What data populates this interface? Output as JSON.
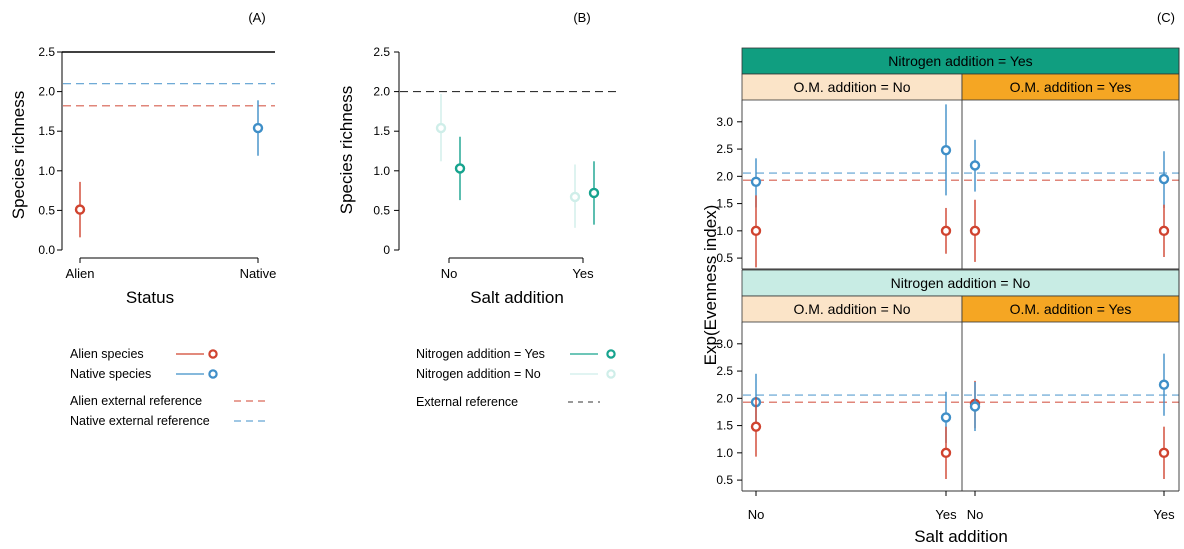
{
  "colors": {
    "alien": "#d0432f",
    "native": "#3f8fc8",
    "n_yes": "#16a38e",
    "n_no": "#cfeee9",
    "strip_n_yes": "#109e80",
    "strip_n_no": "#c8ece4",
    "strip_om_no": "#fbe4c8",
    "strip_om_yes": "#f5a623"
  },
  "chart_data": [
    {
      "panel": "(A)",
      "type": "scatter",
      "xlabel": "Status",
      "ylabel": "Species richness",
      "categories": [
        "Alien",
        "Native"
      ],
      "yticks": [
        "0.0",
        "0.5",
        "1.0",
        "1.5",
        "2.0",
        "2.5"
      ],
      "ylim": [
        0,
        2.5
      ],
      "points": [
        {
          "category": "Alien",
          "group": "alien",
          "y": 0.51,
          "lo": 0.16,
          "hi": 0.86
        },
        {
          "category": "Native",
          "group": "native",
          "y": 1.54,
          "lo": 1.19,
          "hi": 1.89
        }
      ],
      "reference_lines": [
        {
          "group": "native",
          "y": 2.1
        },
        {
          "group": "alien",
          "y": 1.82
        }
      ],
      "legend": [
        {
          "label": "Alien species",
          "group": "alien",
          "kind": "point"
        },
        {
          "label": "Native species",
          "group": "native",
          "kind": "point"
        },
        {
          "label": "Alien external reference",
          "group": "alien",
          "kind": "dash"
        },
        {
          "label": "Native external reference",
          "group": "native",
          "kind": "dash"
        }
      ]
    },
    {
      "panel": "(B)",
      "type": "scatter",
      "xlabel": "Salt addition",
      "ylabel": "Species richness",
      "categories": [
        "No",
        "Yes"
      ],
      "yticks": [
        "0",
        "0.5",
        "1.0",
        "1.5",
        "2.0",
        "2.5"
      ],
      "ylim": [
        0,
        2.5
      ],
      "points": [
        {
          "category": "No",
          "group": "n_no",
          "y": 1.54,
          "lo": 1.12,
          "hi": 1.97
        },
        {
          "category": "No",
          "group": "n_yes",
          "y": 1.03,
          "lo": 0.63,
          "hi": 1.43
        },
        {
          "category": "Yes",
          "group": "n_no",
          "y": 0.67,
          "lo": 0.28,
          "hi": 1.08
        },
        {
          "category": "Yes",
          "group": "n_yes",
          "y": 0.72,
          "lo": 0.32,
          "hi": 1.12
        }
      ],
      "reference_lines": [
        {
          "group": "external",
          "y": 2.0
        }
      ],
      "legend": [
        {
          "label": "Nitrogen addition = Yes",
          "group": "n_yes",
          "kind": "point"
        },
        {
          "label": "Nitrogen addition = No",
          "group": "n_no",
          "kind": "point"
        },
        {
          "label": "External reference",
          "group": "external",
          "kind": "dash"
        }
      ]
    },
    {
      "panel": "(C)",
      "type": "scatter",
      "xlabel": "Salt addition",
      "ylabel": "Exp(Evenness index)",
      "categories": [
        "No",
        "Yes"
      ],
      "yticks": [
        "0.5",
        "1.0",
        "1.5",
        "2.0",
        "2.5",
        "3.0"
      ],
      "ylim": [
        0.3,
        3.4
      ],
      "row_strips": [
        "Nitrogen addition = Yes",
        "Nitrogen addition = No"
      ],
      "col_strips": [
        "O.M. addition = No",
        "O.M. addition = Yes"
      ],
      "reference_lines": [
        {
          "group": "native",
          "y": 2.06
        },
        {
          "group": "alien",
          "y": 1.93
        }
      ],
      "facets": [
        {
          "nitrogen": "Yes",
          "om": "No",
          "points": [
            {
              "category": "No",
              "group": "native",
              "y": 1.9,
              "lo": 1.43,
              "hi": 2.33
            },
            {
              "category": "No",
              "group": "alien",
              "y": 1.0,
              "lo": 0.33,
              "hi": 1.65
            },
            {
              "category": "Yes",
              "group": "native",
              "y": 2.48,
              "lo": 1.65,
              "hi": 3.32
            },
            {
              "category": "Yes",
              "group": "alien",
              "y": 1.0,
              "lo": 0.58,
              "hi": 1.42
            }
          ]
        },
        {
          "nitrogen": "Yes",
          "om": "Yes",
          "points": [
            {
              "category": "No",
              "group": "native",
              "y": 2.2,
              "lo": 1.72,
              "hi": 2.67
            },
            {
              "category": "No",
              "group": "alien",
              "y": 1.0,
              "lo": 0.43,
              "hi": 1.57
            },
            {
              "category": "Yes",
              "group": "native",
              "y": 1.95,
              "lo": 1.42,
              "hi": 2.46
            },
            {
              "category": "Yes",
              "group": "alien",
              "y": 1.0,
              "lo": 0.52,
              "hi": 1.48
            }
          ]
        },
        {
          "nitrogen": "No",
          "om": "No",
          "points": [
            {
              "category": "No",
              "group": "native",
              "y": 1.93,
              "lo": 1.38,
              "hi": 2.45
            },
            {
              "category": "No",
              "group": "alien",
              "y": 1.48,
              "lo": 0.93,
              "hi": 2.02
            },
            {
              "category": "Yes",
              "group": "native",
              "y": 1.65,
              "lo": 1.18,
              "hi": 2.12
            },
            {
              "category": "Yes",
              "group": "alien",
              "y": 1.0,
              "lo": 0.52,
              "hi": 1.48
            }
          ]
        },
        {
          "nitrogen": "No",
          "om": "Yes",
          "points": [
            {
              "category": "No",
              "group": "alien",
              "y": 1.9,
              "lo": 1.45,
              "hi": 2.32
            },
            {
              "category": "No",
              "group": "native",
              "y": 1.85,
              "lo": 1.4,
              "hi": 2.3
            },
            {
              "category": "Yes",
              "group": "native",
              "y": 2.25,
              "lo": 1.68,
              "hi": 2.82
            },
            {
              "category": "Yes",
              "group": "alien",
              "y": 1.0,
              "lo": 0.52,
              "hi": 1.48
            }
          ]
        }
      ]
    }
  ]
}
